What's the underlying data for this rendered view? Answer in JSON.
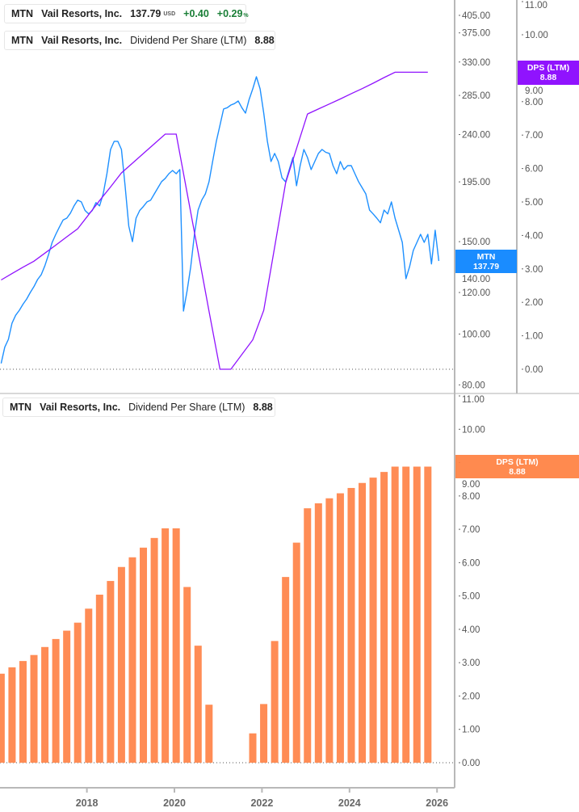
{
  "legends": {
    "price": {
      "ticker": "MTN",
      "name": "Vail Resorts, Inc.",
      "price": "137.79",
      "currency": "USD",
      "change": "+0.40",
      "change_pct": "+0.29",
      "pct_sign": "%"
    },
    "dps_top": {
      "ticker": "MTN",
      "name": "Vail Resorts, Inc.",
      "metric": "Dividend Per Share (LTM)",
      "value": "8.88"
    },
    "dps_bottom": {
      "ticker": "MTN",
      "name": "Vail Resorts, Inc.",
      "metric": "Dividend Per Share (LTM)",
      "value": "8.88"
    }
  },
  "tags": {
    "price": {
      "label": "MTN",
      "value": "137.79"
    },
    "dps_top": {
      "label": "DPS (LTM)",
      "value": "8.88"
    },
    "dps_bottom": {
      "label": "DPS (LTM)",
      "value": "8.88"
    }
  },
  "colors": {
    "price": "#1e90ff",
    "dps_line": "#9013fe",
    "dps_bar": "#ff8c55",
    "positive": "#1a7f37",
    "price_tag": "#1a8cff",
    "dps_tag_top": "#9013fe",
    "dps_tag_bottom": "#ff8142"
  },
  "chart_data": [
    {
      "type": "line",
      "y_scale": "log",
      "ylim": [
        80,
        405
      ],
      "y_ticks": [
        "405.00",
        "375.00",
        "330.00",
        "285.00",
        "240.00",
        "195.00",
        "150.00",
        "140.00",
        "120.00",
        "100.00",
        "80.00"
      ],
      "y2lim": [
        0,
        11
      ],
      "y2_ticks": [
        "11.00",
        "10.00",
        "9.00",
        "8.00",
        "7.00",
        "6.00",
        "5.00",
        "4.00",
        "3.00",
        "2.00",
        "1.00",
        "0.00"
      ],
      "series": [
        {
          "name": "MTN",
          "axis": "price",
          "x": [
            "2016-01",
            "2016-02",
            "2016-03",
            "2016-04",
            "2016-05",
            "2016-06",
            "2016-07",
            "2016-08",
            "2016-09",
            "2016-10",
            "2016-11",
            "2016-12",
            "2017-01",
            "2017-02",
            "2017-03",
            "2017-04",
            "2017-05",
            "2017-06",
            "2017-07",
            "2017-08",
            "2017-09",
            "2017-10",
            "2017-11",
            "2017-12",
            "2018-01",
            "2018-02",
            "2018-03",
            "2018-04",
            "2018-05",
            "2018-06",
            "2018-07",
            "2018-08",
            "2018-09",
            "2018-10",
            "2018-11",
            "2018-12",
            "2019-01",
            "2019-02",
            "2019-03",
            "2019-04",
            "2019-05",
            "2019-06",
            "2019-07",
            "2019-08",
            "2019-09",
            "2019-10",
            "2019-11",
            "2019-12",
            "2020-01",
            "2020-02",
            "2020-03",
            "2020-04",
            "2020-05",
            "2020-06",
            "2020-07",
            "2020-08",
            "2020-09",
            "2020-10",
            "2020-11",
            "2020-12",
            "2021-01",
            "2021-02",
            "2021-03",
            "2021-04",
            "2021-05",
            "2021-06",
            "2021-07",
            "2021-08",
            "2021-09",
            "2021-10",
            "2021-11",
            "2021-12",
            "2022-01",
            "2022-02",
            "2022-03",
            "2022-04",
            "2022-05",
            "2022-06",
            "2022-07",
            "2022-08",
            "2022-09",
            "2022-10",
            "2022-11",
            "2022-12",
            "2023-01",
            "2023-02",
            "2023-03",
            "2023-04",
            "2023-05",
            "2023-06",
            "2023-07",
            "2023-08",
            "2023-09",
            "2023-10",
            "2023-11",
            "2023-12",
            "2024-01",
            "2024-02",
            "2024-03",
            "2024-04",
            "2024-05",
            "2024-06",
            "2024-07",
            "2024-08",
            "2024-09",
            "2024-10",
            "2024-11",
            "2024-12",
            "2025-01",
            "2025-02",
            "2025-03",
            "2025-04",
            "2025-05",
            "2025-06",
            "2025-07",
            "2025-08",
            "2025-09",
            "2025-10",
            "2025-11",
            "2025-12",
            "2026-01"
          ],
          "y": [
            87.9,
            94.4,
            97.7,
            104.9,
            108.6,
            111,
            114,
            116.6,
            120,
            123.1,
            127,
            129.8,
            135,
            141.7,
            149.5,
            154.9,
            160,
            165,
            166.3,
            170,
            175.5,
            180,
            178.6,
            172,
            169.4,
            172,
            178,
            175.5,
            185,
            202.1,
            224.8,
            233,
            233,
            224.8,
            191.7,
            160.5,
            150,
            166.3,
            172,
            175,
            178.6,
            180,
            185,
            190,
            195.2,
            198,
            202.1,
            205,
            202.1,
            205.8,
            110.6,
            120.9,
            134.4,
            155,
            172.3,
            180,
            185,
            195,
            213.2,
            233,
            250,
            268.5,
            270,
            273.2,
            275,
            278.1,
            270,
            263.7,
            280,
            293.3,
            309.3,
            293.3,
            263.7,
            233,
            213.2,
            220.9,
            213.2,
            198.6,
            195,
            205.8,
            217,
            191.7,
            209.4,
            224.8,
            217,
            205.8,
            213.2,
            220.9,
            224.8,
            222,
            220.9,
            209.4,
            202.1,
            213.2,
            205.8,
            209.4,
            209.4,
            202.1,
            195.2,
            190,
            185,
            172.3,
            169.4,
            166.3,
            163,
            172.3,
            169.4,
            178.6,
            166.3,
            157.7,
            149.5,
            127.5,
            134.4,
            144.3,
            149.5,
            154.9,
            149.5,
            154.9,
            136,
            157.7,
            137.79
          ]
        },
        {
          "name": "Dividend Per Share (LTM)",
          "axis": "dps"
        }
      ]
    },
    {
      "type": "bar",
      "name": "Dividend Per Share (LTM)",
      "ylim": [
        0,
        11
      ],
      "y_ticks": [
        "11.00",
        "10.00",
        "9.00",
        "8.00",
        "7.00",
        "6.00",
        "5.00",
        "4.00",
        "3.00",
        "2.00",
        "1.00",
        "0.00"
      ],
      "categories": [
        "2016-01",
        "2016-04",
        "2016-07",
        "2016-10",
        "2017-01",
        "2017-04",
        "2017-07",
        "2017-10",
        "2018-01",
        "2018-04",
        "2018-07",
        "2018-10",
        "2019-01",
        "2019-04",
        "2019-07",
        "2019-10",
        "2020-01",
        "2020-04",
        "2020-07",
        "2020-10",
        "2021-01",
        "2021-04",
        "2021-07",
        "2021-10",
        "2022-01",
        "2022-04",
        "2022-07",
        "2022-10",
        "2023-01",
        "2023-04",
        "2023-07",
        "2023-10",
        "2024-01",
        "2024-04",
        "2024-07",
        "2024-10",
        "2025-01",
        "2025-04",
        "2025-07",
        "2025-10"
      ],
      "values": [
        2.67,
        2.86,
        3.05,
        3.23,
        3.47,
        3.71,
        3.96,
        4.2,
        4.62,
        5.04,
        5.45,
        5.87,
        6.16,
        6.45,
        6.74,
        7.03,
        7.03,
        5.27,
        3.51,
        1.74,
        0,
        0,
        null,
        0.88,
        1.76,
        3.65,
        5.57,
        6.6,
        7.63,
        7.78,
        7.93,
        8.08,
        8.24,
        8.39,
        8.55,
        8.72,
        8.88,
        8.88,
        8.88,
        8.88
      ],
      "x_ticks": [
        "2018",
        "2020",
        "2022",
        "2024",
        "2026"
      ]
    }
  ]
}
